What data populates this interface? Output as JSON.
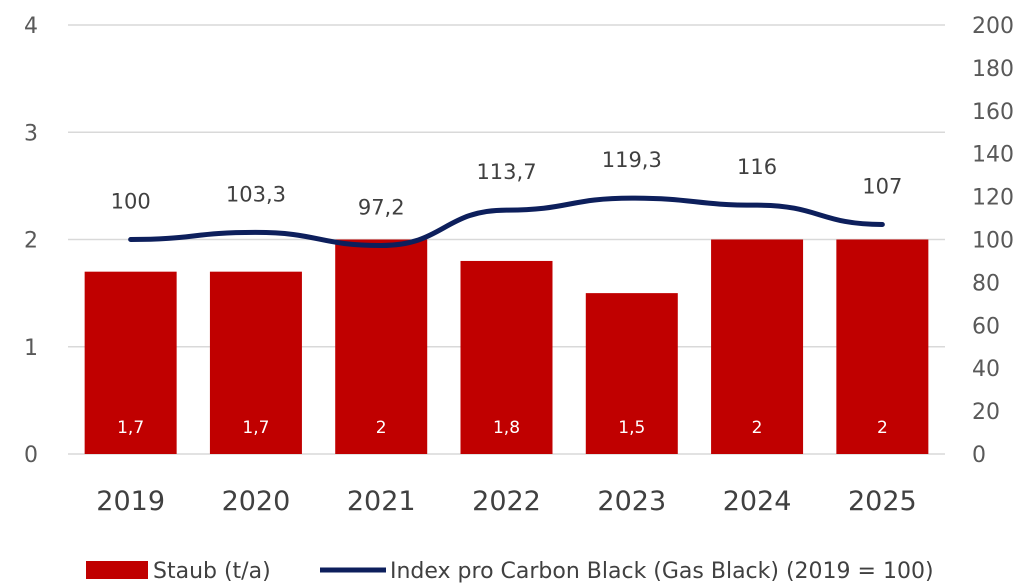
{
  "chart_data": {
    "type": "bar",
    "categories": [
      "2019",
      "2020",
      "2021",
      "2022",
      "2023",
      "2024",
      "2025"
    ],
    "series": [
      {
        "name": "Staub (t/a)",
        "type": "bar",
        "axis": "left",
        "values": [
          1.7,
          1.7,
          2,
          1.8,
          1.5,
          2,
          2
        ],
        "labels": [
          "1,7",
          "1,7",
          "2",
          "1,8",
          "1,5",
          "2",
          "2"
        ]
      },
      {
        "name": "Index pro Carbon Black (Gas Black) (2019 = 100)",
        "type": "line",
        "axis": "right",
        "values": [
          100,
          103.3,
          97.2,
          113.7,
          119.3,
          116,
          107
        ],
        "labels": [
          "100",
          "103,3",
          "97,2",
          "113,7",
          "119,3",
          "116",
          "107"
        ]
      }
    ],
    "ylim_left": [
      0,
      4
    ],
    "yticks_left": [
      "0",
      "1",
      "2",
      "3",
      "4"
    ],
    "ylim_right": [
      0,
      200
    ],
    "yticks_right": [
      "0",
      "20",
      "40",
      "60",
      "80",
      "100",
      "120",
      "140",
      "160",
      "180",
      "200"
    ],
    "grid": true,
    "legend_position": "bottom",
    "colors": {
      "bar": "#c00000",
      "line": "#0d1f5c",
      "grid": "#d9d9d9"
    }
  }
}
